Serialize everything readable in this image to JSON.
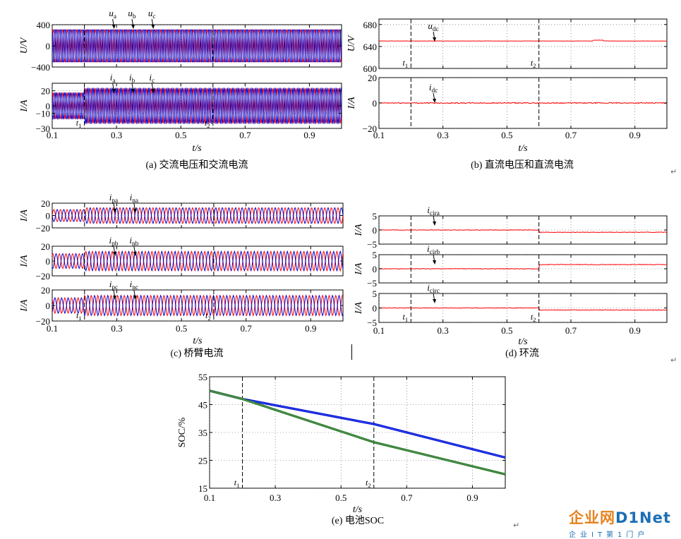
{
  "chart_data": [
    {
      "id": "a",
      "type": "line",
      "caption": "(a) 交流电压和交流电流",
      "xlabel": "t/s",
      "xlim": [
        0.1,
        1.0
      ],
      "xticks": [
        "0.1",
        "0.3",
        "0.5",
        "0.7",
        "0.9"
      ],
      "panels": [
        {
          "ylabel": "U/V",
          "ylim": [
            -400,
            400
          ],
          "yticks": [
            "400",
            "0",
            "−400"
          ],
          "series": [
            {
              "name": "u_a",
              "color": "#ff0000",
              "amplitude": 320,
              "phase_deg": 0
            },
            {
              "name": "u_b",
              "color": "#0000cc",
              "amplitude": 320,
              "phase_deg": -120
            },
            {
              "name": "u_c",
              "color": "#0000cc",
              "amplitude": 320,
              "phase_deg": 120
            }
          ],
          "annotations": [
            {
              "base": "u",
              "sub": "a",
              "x": 0.288
            },
            {
              "base": "u",
              "sub": "b",
              "x": 0.348
            },
            {
              "base": "u",
              "sub": "c",
              "x": 0.41
            }
          ]
        },
        {
          "ylabel": "I/A",
          "ylim": [
            -30,
            30
          ],
          "yticks": [
            "20",
            "0",
            "−10",
            "−30"
          ],
          "series": [
            {
              "name": "i_a",
              "color": "#ff0000",
              "amplitude_before": 18,
              "amplitude_after": 24,
              "phase_deg": 0
            },
            {
              "name": "i_b",
              "color": "#0000cc",
              "amplitude_before": 18,
              "amplitude_after": 24,
              "phase_deg": -120
            },
            {
              "name": "i_c",
              "color": "#0000cc",
              "amplitude_before": 18,
              "amplitude_after": 24,
              "phase_deg": 120
            }
          ],
          "annotations": [
            {
              "base": "i",
              "sub": "a",
              "x": 0.288
            },
            {
              "base": "i",
              "sub": "b",
              "x": 0.348
            },
            {
              "base": "i",
              "sub": "c",
              "x": 0.41
            }
          ]
        }
      ],
      "events": [
        {
          "label": "t",
          "sub": "1",
          "x": 0.2
        },
        {
          "label": "t",
          "sub": "2",
          "x": 0.6
        }
      ]
    },
    {
      "id": "b",
      "type": "line",
      "caption": "(b) 直流电压和直流电流",
      "xlabel": "t/s",
      "xlim": [
        0.1,
        1.0
      ],
      "xticks": [
        "0.1",
        "0.3",
        "0.5",
        "0.7",
        "0.9"
      ],
      "panels": [
        {
          "ylabel": "U/V",
          "ylim": [
            600,
            690
          ],
          "yticks": [
            "680",
            "640",
            "600"
          ],
          "series": [
            {
              "name": "u_dc",
              "color": "#ff0000",
              "value": 650
            }
          ],
          "annotations": [
            {
              "base": "u",
              "sub": "dc",
              "x": 0.27
            }
          ]
        },
        {
          "ylabel": "I/A",
          "ylim": [
            -20,
            20
          ],
          "yticks": [
            "20",
            "0",
            "−20"
          ],
          "series": [
            {
              "name": "i_dc",
              "color": "#ff0000",
              "value": 0
            }
          ],
          "annotations": [
            {
              "base": "i",
              "sub": "dc",
              "x": 0.27
            }
          ]
        }
      ],
      "events": [
        {
          "label": "t",
          "sub": "1",
          "x": 0.2
        },
        {
          "label": "t",
          "sub": "2",
          "x": 0.6
        }
      ]
    },
    {
      "id": "c",
      "type": "line",
      "caption": "(c) 桥臂电流",
      "xlabel": "t/s",
      "xlim": [
        0.1,
        1.0
      ],
      "xticks": [
        "0.1",
        "0.3",
        "0.5",
        "0.7",
        "0.9"
      ],
      "panels": [
        {
          "ylabel": "I/A",
          "ylim": [
            -20,
            20
          ],
          "yticks": [
            "20",
            "0",
            "−20"
          ],
          "series": [
            {
              "name": "i_pa",
              "color": "#ff0000",
              "amplitude_before": 10,
              "amplitude_after": 13,
              "offset": 0,
              "phase_deg": 0
            },
            {
              "name": "i_na",
              "color": "#0000cc",
              "amplitude_before": 10,
              "amplitude_after": 13,
              "offset": 0,
              "phase_deg": 180
            }
          ],
          "annotations": [
            {
              "base": "i",
              "sub": "pa",
              "x": 0.29
            },
            {
              "base": "i",
              "sub": "na",
              "x": 0.353
            }
          ]
        },
        {
          "ylabel": "I/A",
          "ylim": [
            -20,
            20
          ],
          "yticks": [
            "20",
            "0",
            "−20"
          ],
          "series": [
            {
              "name": "i_pb",
              "color": "#ff0000",
              "amplitude_before": 10,
              "amplitude_after": 13,
              "offset": 0,
              "phase_deg": 60
            },
            {
              "name": "i_nb",
              "color": "#0000cc",
              "amplitude_before": 10,
              "amplitude_after": 13,
              "offset": 0,
              "phase_deg": 240
            }
          ],
          "annotations": [
            {
              "base": "i",
              "sub": "pb",
              "x": 0.29
            },
            {
              "base": "i",
              "sub": "nb",
              "x": 0.353
            }
          ]
        },
        {
          "ylabel": "I/A",
          "ylim": [
            -20,
            20
          ],
          "yticks": [
            "20",
            "0",
            "−20"
          ],
          "series": [
            {
              "name": "i_pc",
              "color": "#ff0000",
              "amplitude_before": 10,
              "amplitude_after": 13,
              "offset": 0,
              "phase_deg": 120
            },
            {
              "name": "i_nc",
              "color": "#0000cc",
              "amplitude_before": 10,
              "amplitude_after": 13,
              "offset": 0,
              "phase_deg": 300
            }
          ],
          "annotations": [
            {
              "base": "i",
              "sub": "pc",
              "x": 0.29
            },
            {
              "base": "i",
              "sub": "nc",
              "x": 0.353
            }
          ]
        }
      ],
      "events": [
        {
          "label": "t",
          "sub": "1",
          "x": 0.2
        },
        {
          "label": "t",
          "sub": "2",
          "x": 0.6
        }
      ]
    },
    {
      "id": "d",
      "type": "line",
      "caption": "(d) 环流",
      "xlabel": "t/s",
      "xlim": [
        0.1,
        1.0
      ],
      "xticks": [
        "0.1",
        "0.3",
        "0.5",
        "0.7",
        "0.9"
      ],
      "panels": [
        {
          "ylabel": "I/A",
          "ylim": [
            -5,
            5
          ],
          "yticks": [
            "5",
            "0",
            "−5"
          ],
          "series": [
            {
              "name": "i_cira",
              "color": "#ff0000",
              "value_before": 0,
              "value_after": -0.8
            }
          ],
          "annotations": [
            {
              "base": "i",
              "sub": "cira",
              "x": 0.27
            }
          ]
        },
        {
          "ylabel": "I/A",
          "ylim": [
            -5,
            5
          ],
          "yticks": [
            "5",
            "0",
            "−5"
          ],
          "series": [
            {
              "name": "i_cirb",
              "color": "#ff0000",
              "value_before": 0,
              "value_after": 1.5
            }
          ],
          "annotations": [
            {
              "base": "i",
              "sub": "cirb",
              "x": 0.27
            }
          ]
        },
        {
          "ylabel": "I/A",
          "ylim": [
            -5,
            5
          ],
          "yticks": [
            "5",
            "0",
            "−5"
          ],
          "series": [
            {
              "name": "i_circ",
              "color": "#ff0000",
              "value_before": 0,
              "value_after": -0.7
            }
          ],
          "annotations": [
            {
              "base": "i",
              "sub": "circ",
              "x": 0.27
            }
          ]
        }
      ],
      "events": [
        {
          "label": "t",
          "sub": "1",
          "x": 0.2
        },
        {
          "label": "t",
          "sub": "2",
          "x": 0.6
        }
      ]
    },
    {
      "id": "e",
      "type": "line",
      "caption": "(e) 电池SOC",
      "xlabel": "t/s",
      "ylabel": "SOC/%",
      "xlim": [
        0.1,
        1.0
      ],
      "ylim": [
        15,
        55
      ],
      "xticks": [
        "0.1",
        "0.3",
        "0.5",
        "0.7",
        "0.9"
      ],
      "yticks": [
        "55",
        "45",
        "35",
        "25",
        "15"
      ],
      "series": [
        {
          "color": "#0000cc",
          "x": [
            0.1,
            0.2,
            0.6,
            1.0
          ],
          "y": [
            50,
            47,
            38,
            26
          ]
        },
        {
          "color": "#227722",
          "x": [
            0.1,
            0.2,
            0.6,
            1.0
          ],
          "y": [
            50,
            47,
            31.5,
            20
          ]
        }
      ],
      "events": [
        {
          "label": "t",
          "sub": "1",
          "x": 0.2
        },
        {
          "label": "t",
          "sub": "2",
          "x": 0.6
        }
      ]
    }
  ],
  "logo": {
    "title_cn": "企业网",
    "title_en": "D1Net",
    "subtitle": "企业IT第1门户"
  }
}
